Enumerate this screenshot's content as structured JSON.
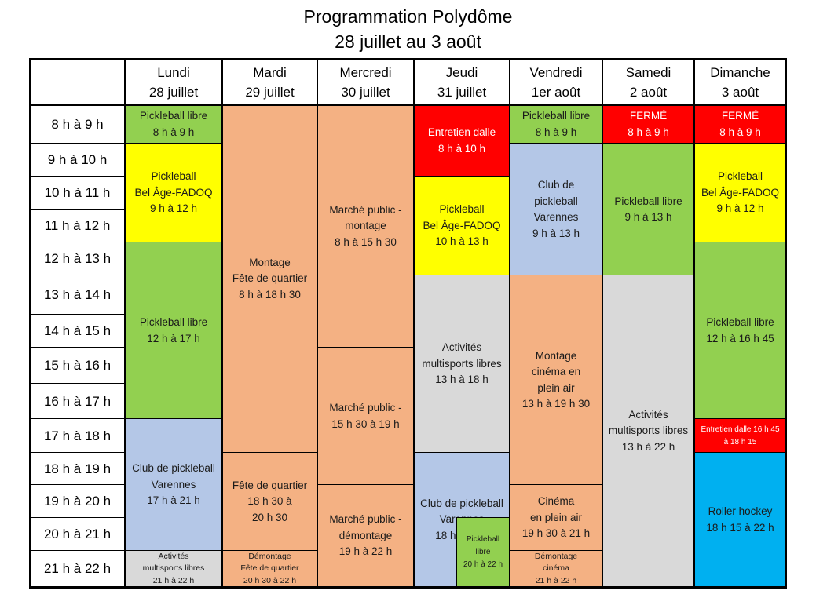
{
  "title": {
    "line1": "Programmation Polydôme",
    "line2": "28 juillet au 3 août"
  },
  "colors": {
    "green": "#92d050",
    "yellow": "#ffff00",
    "salmon": "#f4b183",
    "blue": "#b4c7e7",
    "grey": "#d9d9d9",
    "red": "#ff0000",
    "cyan": "#00b0f0"
  },
  "days": [
    {
      "name": "Lundi",
      "date": "28 juillet"
    },
    {
      "name": "Mardi",
      "date": "29 juillet"
    },
    {
      "name": "Mercredi",
      "date": "30 juillet"
    },
    {
      "name": "Jeudi",
      "date": "31 juillet"
    },
    {
      "name": "Vendredi",
      "date": "1er août"
    },
    {
      "name": "Samedi",
      "date": "2 août"
    },
    {
      "name": "Dimanche",
      "date": "3 août"
    }
  ],
  "hours": [
    "8 h à 9 h",
    "9 h à 10 h",
    "10 h à 11 h",
    "11 h à 12 h",
    "12 h à 13 h",
    "13 h à 14 h",
    "14 h à 15 h",
    "15 h à 16 h",
    "16 h à 17 h",
    "17 h à 18 h",
    "18 h à 19 h",
    "19 h à 20 h",
    "20 h à 21 h",
    "21 h à 22 h"
  ],
  "blocks": {
    "mon_pickleball_8": [
      "Pickleball libre",
      "8 h à 9 h"
    ],
    "mon_belage": [
      "Pickleball",
      "Bel Âge-FADOQ",
      "9 h à 12 h"
    ],
    "mon_pickleball_12": [
      "Pickleball libre",
      "12 h à 17 h"
    ],
    "mon_club": [
      "Club de pickleball",
      "Varennes",
      "17 h à 21 h"
    ],
    "mon_multisports": [
      "Activités",
      "multisports libres",
      "21  h à 22  h"
    ],
    "tue_montage": [
      "Montage",
      "Fête de quartier",
      "8 h à 18 h 30"
    ],
    "tue_fete": [
      "Fête de quartier",
      "18 h 30 à",
      "20 h 30"
    ],
    "tue_demontage": [
      "Démontage",
      "Fête de quartier",
      "20 h 30 à 22 h"
    ],
    "wed_montage": [
      "Marché public -",
      "montage",
      "8 h à 15 h 30"
    ],
    "wed_marche": [
      "Marché public -",
      "15 h 30 à 19 h"
    ],
    "wed_demontage": [
      "Marché public -",
      "démontage",
      "19 h à 22 h"
    ],
    "thu_entretien": [
      "Entretien dalle",
      "8 h à 10 h"
    ],
    "thu_belage": [
      "Pickleball",
      "Bel Âge-FADOQ",
      "10 h à 13 h"
    ],
    "thu_multisports": [
      "Activités",
      "multisports libres",
      "13 h à 18 h"
    ],
    "thu_club": [
      "Club de pickleball",
      "Varennes",
      "18 h à 22 h"
    ],
    "thu_pickleball": [
      "Pickleball",
      "libre",
      "20 h à 22 h"
    ],
    "fri_pickleball": [
      "Pickleball libre",
      "8 h à 9 h"
    ],
    "fri_club": [
      "Club de",
      "pickleball",
      "Varennes",
      "9 h à 13 h"
    ],
    "fri_montage": [
      "Montage",
      "cinéma en",
      "plein air",
      "13 h à 19 h 30"
    ],
    "fri_cinema": [
      "Cinéma",
      "en plein air",
      "19 h 30 à 21 h"
    ],
    "fri_demontage": [
      "Démontage",
      "cinéma",
      "21 h à 22 h"
    ],
    "sat_ferme": [
      "FERMÉ",
      "8 h à 9 h"
    ],
    "sat_pickleball": [
      "Pickleball libre",
      "9 h à 13 h"
    ],
    "sat_multisports": [
      "Activités",
      "multisports libres",
      "13 h à 22 h"
    ],
    "sun_ferme": [
      "FERMÉ",
      "8 h à 9 h"
    ],
    "sun_belage": [
      "Pickleball",
      "Bel Âge-FADOQ",
      "9 h à 12 h"
    ],
    "sun_pickleball": [
      "Pickleball libre",
      "12 h à 16 h 45"
    ],
    "sun_entretien": [
      "Entretien dalle 16 h 45",
      "à 18 h 15"
    ],
    "sun_roller": [
      "Roller hockey",
      "18 h 15 à 22 h"
    ]
  }
}
